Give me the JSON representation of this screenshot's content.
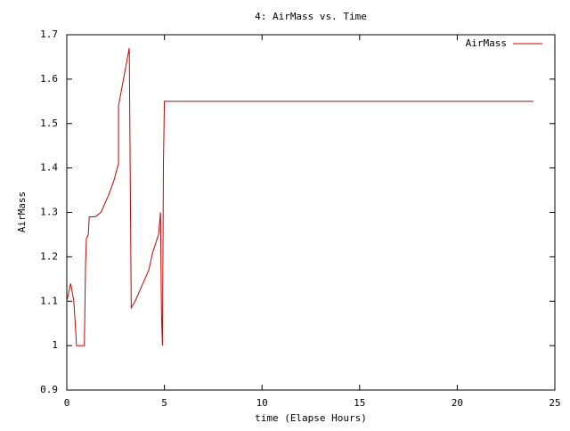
{
  "chart_data": {
    "type": "line",
    "title": "4: AirMass vs. Time",
    "x_label": "time (Elapse Hours)",
    "y_label": "AirMass",
    "xlim": [
      0,
      25
    ],
    "xticks": [
      0,
      5,
      10,
      15,
      20,
      25
    ],
    "ylim": [
      0.9,
      1.7
    ],
    "yticks": [
      0.9,
      1,
      1.1,
      1.2,
      1.3,
      1.4,
      1.5,
      1.6,
      1.7
    ],
    "legend": "top-right",
    "series": [
      {
        "name": "AirMass",
        "color": "#cc0000",
        "x": [
          0,
          0.2,
          0.36,
          0.5,
          0.9,
          0.96,
          1.0,
          1.1,
          1.15,
          1.45,
          1.75,
          2.15,
          2.4,
          2.65,
          2.65,
          3.2,
          3.3,
          3.5,
          3.9,
          4.2,
          4.4,
          4.7,
          4.8,
          4.85,
          4.9,
          4.95,
          5.0,
          23.9
        ],
        "values": [
          1.1,
          1.14,
          1.1,
          1.0,
          1.0,
          1.18,
          1.24,
          1.25,
          1.29,
          1.29,
          1.3,
          1.34,
          1.37,
          1.41,
          1.54,
          1.67,
          1.085,
          1.1,
          1.14,
          1.17,
          1.21,
          1.25,
          1.3,
          1.07,
          1.0,
          1.41,
          1.55,
          1.55
        ]
      }
    ]
  }
}
